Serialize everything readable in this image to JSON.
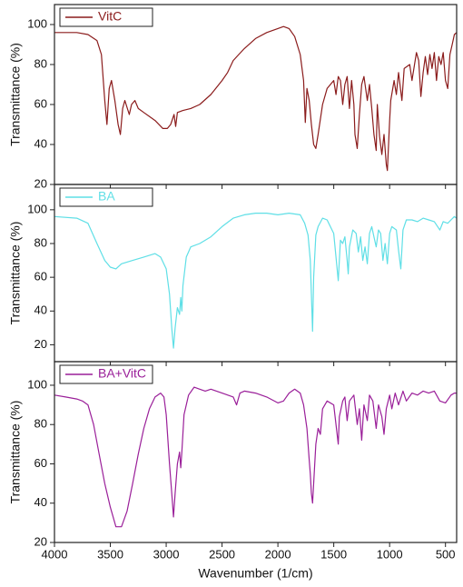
{
  "chart_data": [
    {
      "type": "line",
      "y_label": "Transmittance (%)",
      "x": [
        4000,
        3800,
        3700,
        3620,
        3580,
        3550,
        3530,
        3510,
        3490,
        3460,
        3430,
        3410,
        3390,
        3370,
        3330,
        3310,
        3280,
        3250,
        3200,
        3100,
        3030,
        2990,
        2960,
        2930,
        2915,
        2900,
        2850,
        2780,
        2700,
        2600,
        2500,
        2450,
        2400,
        2350,
        2300,
        2200,
        2100,
        2000,
        1950,
        1900,
        1850,
        1800,
        1770,
        1755,
        1740,
        1720,
        1700,
        1680,
        1660,
        1640,
        1600,
        1560,
        1500,
        1480,
        1460,
        1440,
        1420,
        1400,
        1380,
        1360,
        1340,
        1320,
        1310,
        1290,
        1270,
        1250,
        1230,
        1200,
        1180,
        1160,
        1140,
        1120,
        1110,
        1090,
        1070,
        1050,
        1030,
        1020,
        1000,
        990,
        960,
        940,
        920,
        890,
        870,
        820,
        800,
        760,
        740,
        720,
        700,
        680,
        660,
        640,
        620,
        600,
        580,
        560,
        540,
        520,
        500,
        480,
        460,
        440,
        420,
        400
      ],
      "series": [
        {
          "name": "VitC",
          "color": "#8b1c1c",
          "values": [
            96,
            96,
            95,
            92,
            85,
            62,
            50,
            68,
            72,
            62,
            50,
            45,
            58,
            62,
            55,
            60,
            62,
            58,
            56,
            52,
            48,
            48,
            50,
            55,
            49,
            56,
            57,
            58,
            60,
            65,
            72,
            76,
            82,
            85,
            88,
            93,
            96,
            98,
            99,
            98,
            94,
            85,
            72,
            51,
            68,
            62,
            50,
            40,
            38,
            45,
            60,
            68,
            72,
            65,
            74,
            72,
            60,
            70,
            74,
            58,
            72,
            60,
            45,
            38,
            55,
            70,
            74,
            62,
            70,
            58,
            45,
            37,
            60,
            44,
            35,
            45,
            30,
            27,
            52,
            62,
            72,
            65,
            76,
            62,
            78,
            80,
            72,
            86,
            82,
            64,
            76,
            84,
            75,
            85,
            78,
            86,
            72,
            84,
            80,
            86,
            72,
            68,
            85,
            90,
            95,
            96
          ]
        }
      ],
      "xlim": [
        4000,
        400
      ],
      "xticks": [
        4000,
        3500,
        3000,
        2500,
        2000,
        1500,
        1000,
        500
      ],
      "ylim": [
        20,
        110
      ],
      "yticks": [
        20,
        40,
        60,
        80,
        100
      ]
    },
    {
      "type": "line",
      "y_label": "Transmittance (%)",
      "x": [
        4000,
        3800,
        3700,
        3620,
        3550,
        3500,
        3450,
        3400,
        3300,
        3200,
        3100,
        3050,
        3000,
        2970,
        2950,
        2935,
        2920,
        2900,
        2880,
        2870,
        2860,
        2850,
        2820,
        2780,
        2700,
        2600,
        2500,
        2400,
        2300,
        2200,
        2100,
        2000,
        1900,
        1800,
        1760,
        1730,
        1710,
        1700,
        1690,
        1680,
        1660,
        1640,
        1600,
        1560,
        1500,
        1480,
        1460,
        1450,
        1440,
        1420,
        1400,
        1380,
        1370,
        1360,
        1330,
        1300,
        1280,
        1260,
        1240,
        1220,
        1200,
        1180,
        1160,
        1140,
        1120,
        1100,
        1080,
        1060,
        1040,
        1020,
        1000,
        980,
        940,
        920,
        900,
        880,
        850,
        800,
        750,
        700,
        650,
        600,
        550,
        520,
        480,
        450,
        420,
        400
      ],
      "series": [
        {
          "name": "BA",
          "color": "#5fdfe6",
          "values": [
            96,
            95,
            92,
            80,
            70,
            66,
            65,
            68,
            70,
            72,
            74,
            72,
            65,
            50,
            30,
            18,
            30,
            42,
            38,
            48,
            40,
            55,
            72,
            78,
            80,
            84,
            90,
            95,
            97,
            98,
            98,
            97,
            98,
            97,
            92,
            85,
            70,
            50,
            28,
            60,
            85,
            90,
            95,
            94,
            86,
            72,
            58,
            70,
            82,
            80,
            84,
            70,
            62,
            78,
            88,
            86,
            75,
            84,
            70,
            78,
            68,
            86,
            90,
            84,
            78,
            88,
            86,
            70,
            80,
            68,
            86,
            90,
            88,
            76,
            65,
            88,
            94,
            94,
            93,
            95,
            94,
            93,
            88,
            93,
            92,
            94,
            96,
            95
          ]
        }
      ],
      "xlim": [
        4000,
        400
      ],
      "xticks": [
        4000,
        3500,
        3000,
        2500,
        2000,
        1500,
        1000,
        500
      ],
      "ylim": [
        10,
        115
      ],
      "yticks": [
        20,
        40,
        60,
        80,
        100
      ]
    },
    {
      "type": "line",
      "y_label": "Transmittance (%)",
      "x_label": "Wavenumber (1/cm)",
      "x": [
        4000,
        3900,
        3800,
        3750,
        3700,
        3650,
        3600,
        3550,
        3500,
        3450,
        3400,
        3350,
        3300,
        3250,
        3200,
        3150,
        3100,
        3050,
        3020,
        3000,
        2970,
        2950,
        2935,
        2920,
        2900,
        2880,
        2870,
        2860,
        2840,
        2800,
        2750,
        2700,
        2650,
        2600,
        2500,
        2400,
        2370,
        2340,
        2300,
        2200,
        2100,
        2000,
        1950,
        1900,
        1850,
        1800,
        1770,
        1740,
        1720,
        1710,
        1700,
        1690,
        1680,
        1660,
        1640,
        1620,
        1600,
        1560,
        1500,
        1480,
        1460,
        1450,
        1420,
        1400,
        1380,
        1360,
        1320,
        1290,
        1270,
        1250,
        1230,
        1200,
        1180,
        1150,
        1120,
        1100,
        1070,
        1050,
        1030,
        1000,
        980,
        950,
        920,
        880,
        850,
        800,
        750,
        700,
        650,
        600,
        550,
        500,
        450,
        420,
        400
      ],
      "series": [
        {
          "name": "BA+VitC",
          "color": "#9a1f99",
          "values": [
            95,
            94,
            93,
            92,
            90,
            80,
            65,
            50,
            38,
            28,
            28,
            36,
            50,
            65,
            78,
            88,
            94,
            96,
            94,
            85,
            60,
            45,
            33,
            45,
            60,
            66,
            58,
            66,
            85,
            95,
            99,
            98,
            97,
            98,
            96,
            94,
            90,
            96,
            97,
            96,
            94,
            91,
            92,
            96,
            98,
            96,
            90,
            78,
            62,
            55,
            45,
            40,
            50,
            70,
            78,
            75,
            88,
            92,
            90,
            80,
            70,
            84,
            92,
            94,
            82,
            92,
            95,
            80,
            88,
            72,
            90,
            82,
            95,
            92,
            78,
            90,
            84,
            75,
            88,
            95,
            88,
            96,
            90,
            97,
            92,
            96,
            95,
            97,
            96,
            97,
            92,
            91,
            95,
            96,
            96
          ]
        }
      ],
      "xlim": [
        4000,
        400
      ],
      "xticks": [
        4000,
        3500,
        3000,
        2500,
        2000,
        1500,
        1000,
        500
      ],
      "ylim": [
        20,
        112
      ],
      "yticks": [
        20,
        40,
        60,
        80,
        100
      ]
    }
  ]
}
